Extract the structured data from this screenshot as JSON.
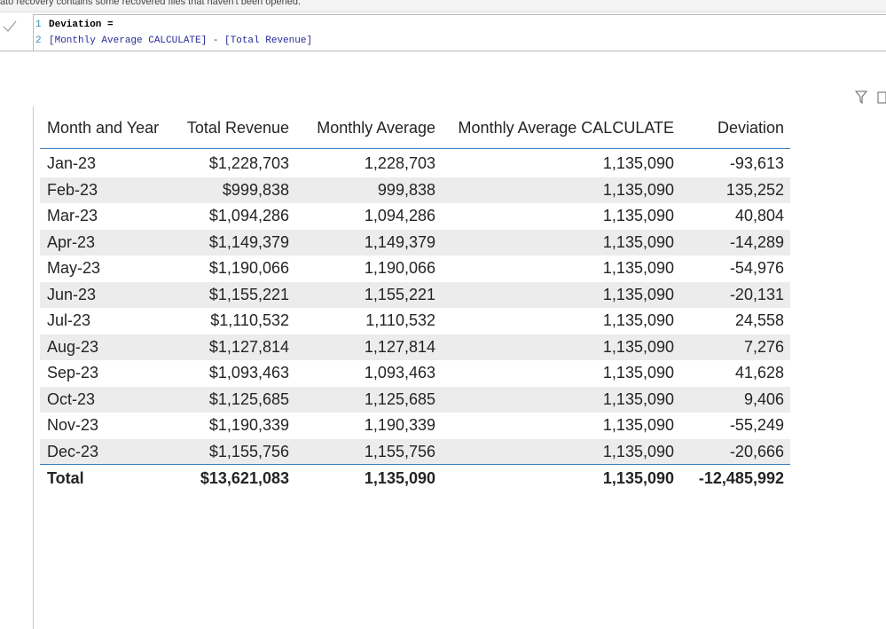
{
  "banner": {
    "text": "ato recovery contains some recovered files that haven't been opened."
  },
  "formula": {
    "lines": [
      {
        "number": "1",
        "text": "Deviation ="
      },
      {
        "number": "2",
        "text": "[Monthly Average CALCULATE] - [Total Revenue]"
      }
    ]
  },
  "table": {
    "columns": [
      "Month and Year",
      "Total Revenue",
      "Monthly Average",
      "Monthly Average CALCULATE",
      "Deviation"
    ],
    "rows": [
      [
        "Jan-23",
        "$1,228,703",
        "1,228,703",
        "1,135,090",
        "-93,613"
      ],
      [
        "Feb-23",
        "$999,838",
        "999,838",
        "1,135,090",
        "135,252"
      ],
      [
        "Mar-23",
        "$1,094,286",
        "1,094,286",
        "1,135,090",
        "40,804"
      ],
      [
        "Apr-23",
        "$1,149,379",
        "1,149,379",
        "1,135,090",
        "-14,289"
      ],
      [
        "May-23",
        "$1,190,066",
        "1,190,066",
        "1,135,090",
        "-54,976"
      ],
      [
        "Jun-23",
        "$1,155,221",
        "1,155,221",
        "1,135,090",
        "-20,131"
      ],
      [
        "Jul-23",
        "$1,110,532",
        "1,110,532",
        "1,135,090",
        "24,558"
      ],
      [
        "Aug-23",
        "$1,127,814",
        "1,127,814",
        "1,135,090",
        "7,276"
      ],
      [
        "Sep-23",
        "$1,093,463",
        "1,093,463",
        "1,135,090",
        "41,628"
      ],
      [
        "Oct-23",
        "$1,125,685",
        "1,125,685",
        "1,135,090",
        "9,406"
      ],
      [
        "Nov-23",
        "$1,190,339",
        "1,190,339",
        "1,135,090",
        "-55,249"
      ],
      [
        "Dec-23",
        "$1,155,756",
        "1,155,756",
        "1,135,090",
        "-20,666"
      ]
    ],
    "total": [
      "Total",
      "$13,621,083",
      "1,135,090",
      "1,135,090",
      "-12,485,992"
    ]
  }
}
